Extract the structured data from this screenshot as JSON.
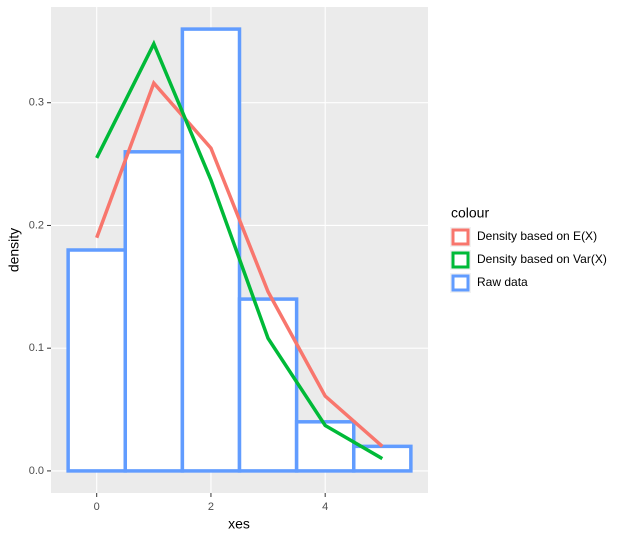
{
  "chart_data": {
    "type": "histogram",
    "x_label": "xes",
    "y_label": "density",
    "legend_title": "colour",
    "x": [
      0,
      1,
      2,
      3,
      4,
      5
    ],
    "bins": [
      -0.5,
      0.5,
      1.5,
      2.5,
      3.5,
      4.5,
      5.5
    ],
    "series": [
      {
        "name": "Density based on E(X)",
        "type": "line",
        "color": "#F8766D",
        "values": [
          0.19,
          0.316,
          0.263,
          0.146,
          0.061,
          0.02
        ]
      },
      {
        "name": "Density based on Var(X)",
        "type": "line",
        "color": "#00BA38",
        "values": [
          0.255,
          0.348,
          0.237,
          0.108,
          0.037,
          0.01
        ]
      },
      {
        "name": "Raw data",
        "type": "histogram",
        "color": "#619CFF",
        "values": [
          0.18,
          0.26,
          0.36,
          0.14,
          0.04,
          0.02
        ]
      }
    ],
    "xlim": [
      -0.8,
      5.8
    ],
    "ylim": [
      -0.018,
      0.378
    ],
    "xticks": [
      0,
      2,
      4
    ],
    "yticks": [
      {
        "value": 0,
        "label": "0.0"
      },
      0.1,
      0.2,
      0.3
    ],
    "grid": true
  }
}
